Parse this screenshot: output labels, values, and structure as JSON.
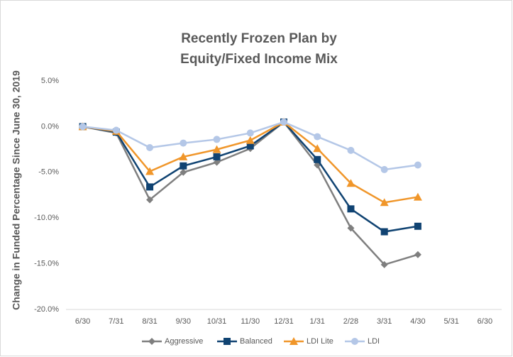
{
  "chart_data": {
    "type": "line",
    "title": [
      "Recently Frozen Plan by",
      "Equity/Fixed Income Mix"
    ],
    "y_label": "Change in Funded Percentage Since June 30, 2019",
    "categories": [
      "6/30",
      "7/31",
      "8/31",
      "9/30",
      "10/31",
      "11/30",
      "12/31",
      "1/31",
      "2/28",
      "3/31",
      "4/30",
      "5/31",
      "6/30"
    ],
    "series": [
      {
        "name": "Aggressive",
        "color": "#7f7f7f",
        "marker": "diamond",
        "values": [
          0,
          -0.7,
          -8.0,
          -5.0,
          -3.9,
          -2.4,
          0.5,
          -4.2,
          -11.1,
          -15.1,
          -14.0,
          null,
          null
        ]
      },
      {
        "name": "Balanced",
        "color": "#104372",
        "marker": "square",
        "values": [
          0,
          -0.6,
          -6.6,
          -4.3,
          -3.3,
          -2.1,
          0.5,
          -3.6,
          -9.0,
          -11.5,
          -10.9,
          null,
          null
        ]
      },
      {
        "name": "LDI Lite",
        "color": "#f0962a",
        "marker": "triangle",
        "values": [
          0,
          -0.5,
          -4.9,
          -3.3,
          -2.5,
          -1.5,
          0.5,
          -2.4,
          -6.2,
          -8.3,
          -7.7,
          null,
          null
        ]
      },
      {
        "name": "LDI",
        "color": "#b4c7e7",
        "marker": "circle",
        "values": [
          0,
          -0.4,
          -2.3,
          -1.8,
          -1.4,
          -0.7,
          0.5,
          -1.1,
          -2.6,
          -4.7,
          -4.2,
          null,
          null
        ]
      }
    ],
    "ylim": [
      -20,
      5
    ],
    "yticks": [
      {
        "value": 5,
        "label": "5.0%"
      },
      {
        "value": 0,
        "label": "0.0%"
      },
      {
        "value": -5,
        "label": "-5.0%"
      },
      {
        "value": -10,
        "label": "-10.0%"
      },
      {
        "value": -15,
        "label": "-15.0%"
      },
      {
        "value": -20,
        "label": "-20.0%"
      }
    ],
    "grid": false,
    "legend": "bottom"
  }
}
